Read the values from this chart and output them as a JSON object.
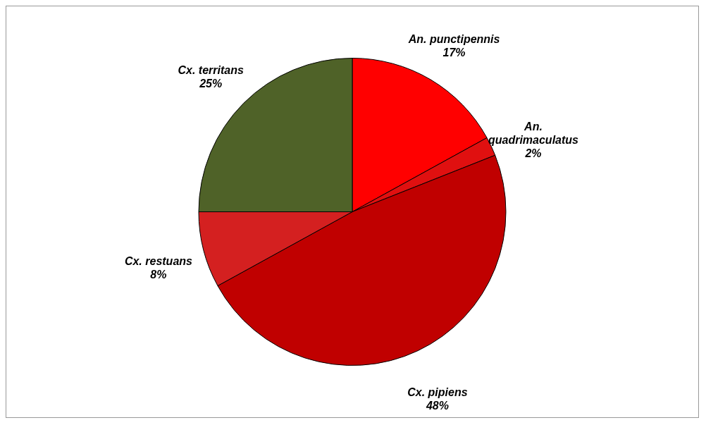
{
  "chart_data": {
    "type": "pie",
    "categories": [
      "An. punctipennis",
      "An. quadrimaculatus",
      "Cx. pipiens",
      "Cx. restuans",
      "Cx. territans"
    ],
    "values": [
      17,
      2,
      48,
      8,
      25
    ],
    "value_labels": [
      "17%",
      "2%",
      "48%",
      "8%",
      "25%"
    ],
    "colors": [
      "#ff0000",
      "#e01010",
      "#c00000",
      "#d42020",
      "#4f6228"
    ]
  }
}
